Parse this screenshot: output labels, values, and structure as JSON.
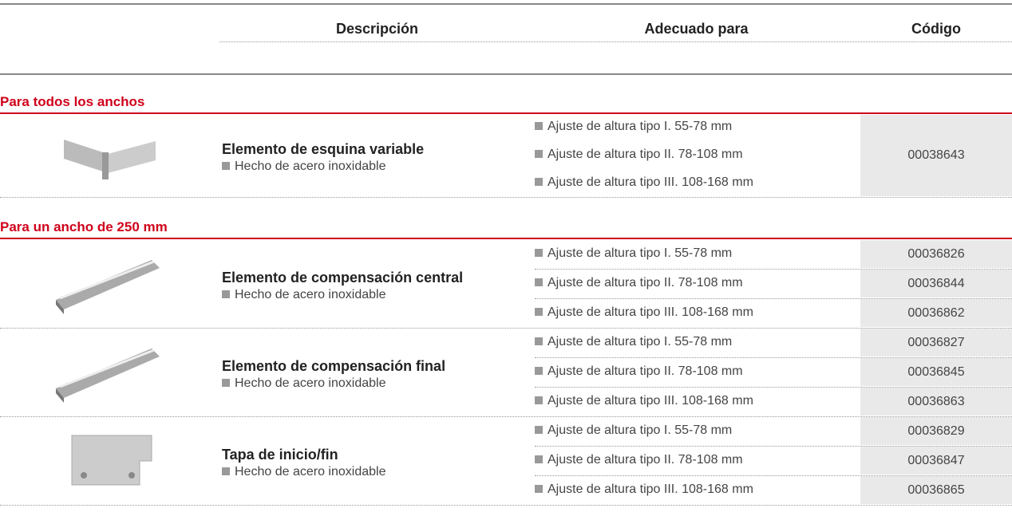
{
  "header": {
    "columns": [
      "Descripción",
      "Adecuado para",
      "Código"
    ]
  },
  "sections": [
    {
      "title": "Para todos los anchos",
      "products": [
        {
          "name": "Elemento de esquina variable",
          "material": "Hecho de acero inoxidable",
          "fits": [
            "Ajuste de altura tipo I. 55-78 mm",
            "Ajuste de altura tipo II. 78-108 mm",
            "Ajuste de altura tipo III. 108-168 mm"
          ],
          "codes": [
            "00038643"
          ]
        }
      ]
    },
    {
      "title": "Para un ancho de 250 mm",
      "products": [
        {
          "name": "Elemento de compensación central",
          "material": "Hecho de acero inoxidable",
          "fits": [
            "Ajuste de altura tipo I. 55-78 mm",
            "Ajuste de altura tipo II. 78-108 mm",
            "Ajuste de altura tipo III. 108-168 mm"
          ],
          "codes": [
            "00036826",
            "00036844",
            "00036862"
          ]
        },
        {
          "name": "Elemento de compensación final",
          "material": "Hecho de acero inoxidable",
          "fits": [
            "Ajuste de altura tipo I. 55-78 mm",
            "Ajuste de altura tipo II. 78-108 mm",
            "Ajuste de altura tipo III. 108-168 mm"
          ],
          "codes": [
            "00036827",
            "00036845",
            "00036863"
          ]
        },
        {
          "name": "Tapa de inicio/fin",
          "material": "Hecho de acero inoxidable",
          "fits": [
            "Ajuste de altura tipo I. 55-78 mm",
            "Ajuste de altura tipo II. 78-108 mm",
            "Ajuste de altura tipo III. 108-168 mm"
          ],
          "codes": [
            "00036829",
            "00036847",
            "00036865"
          ]
        }
      ]
    }
  ]
}
